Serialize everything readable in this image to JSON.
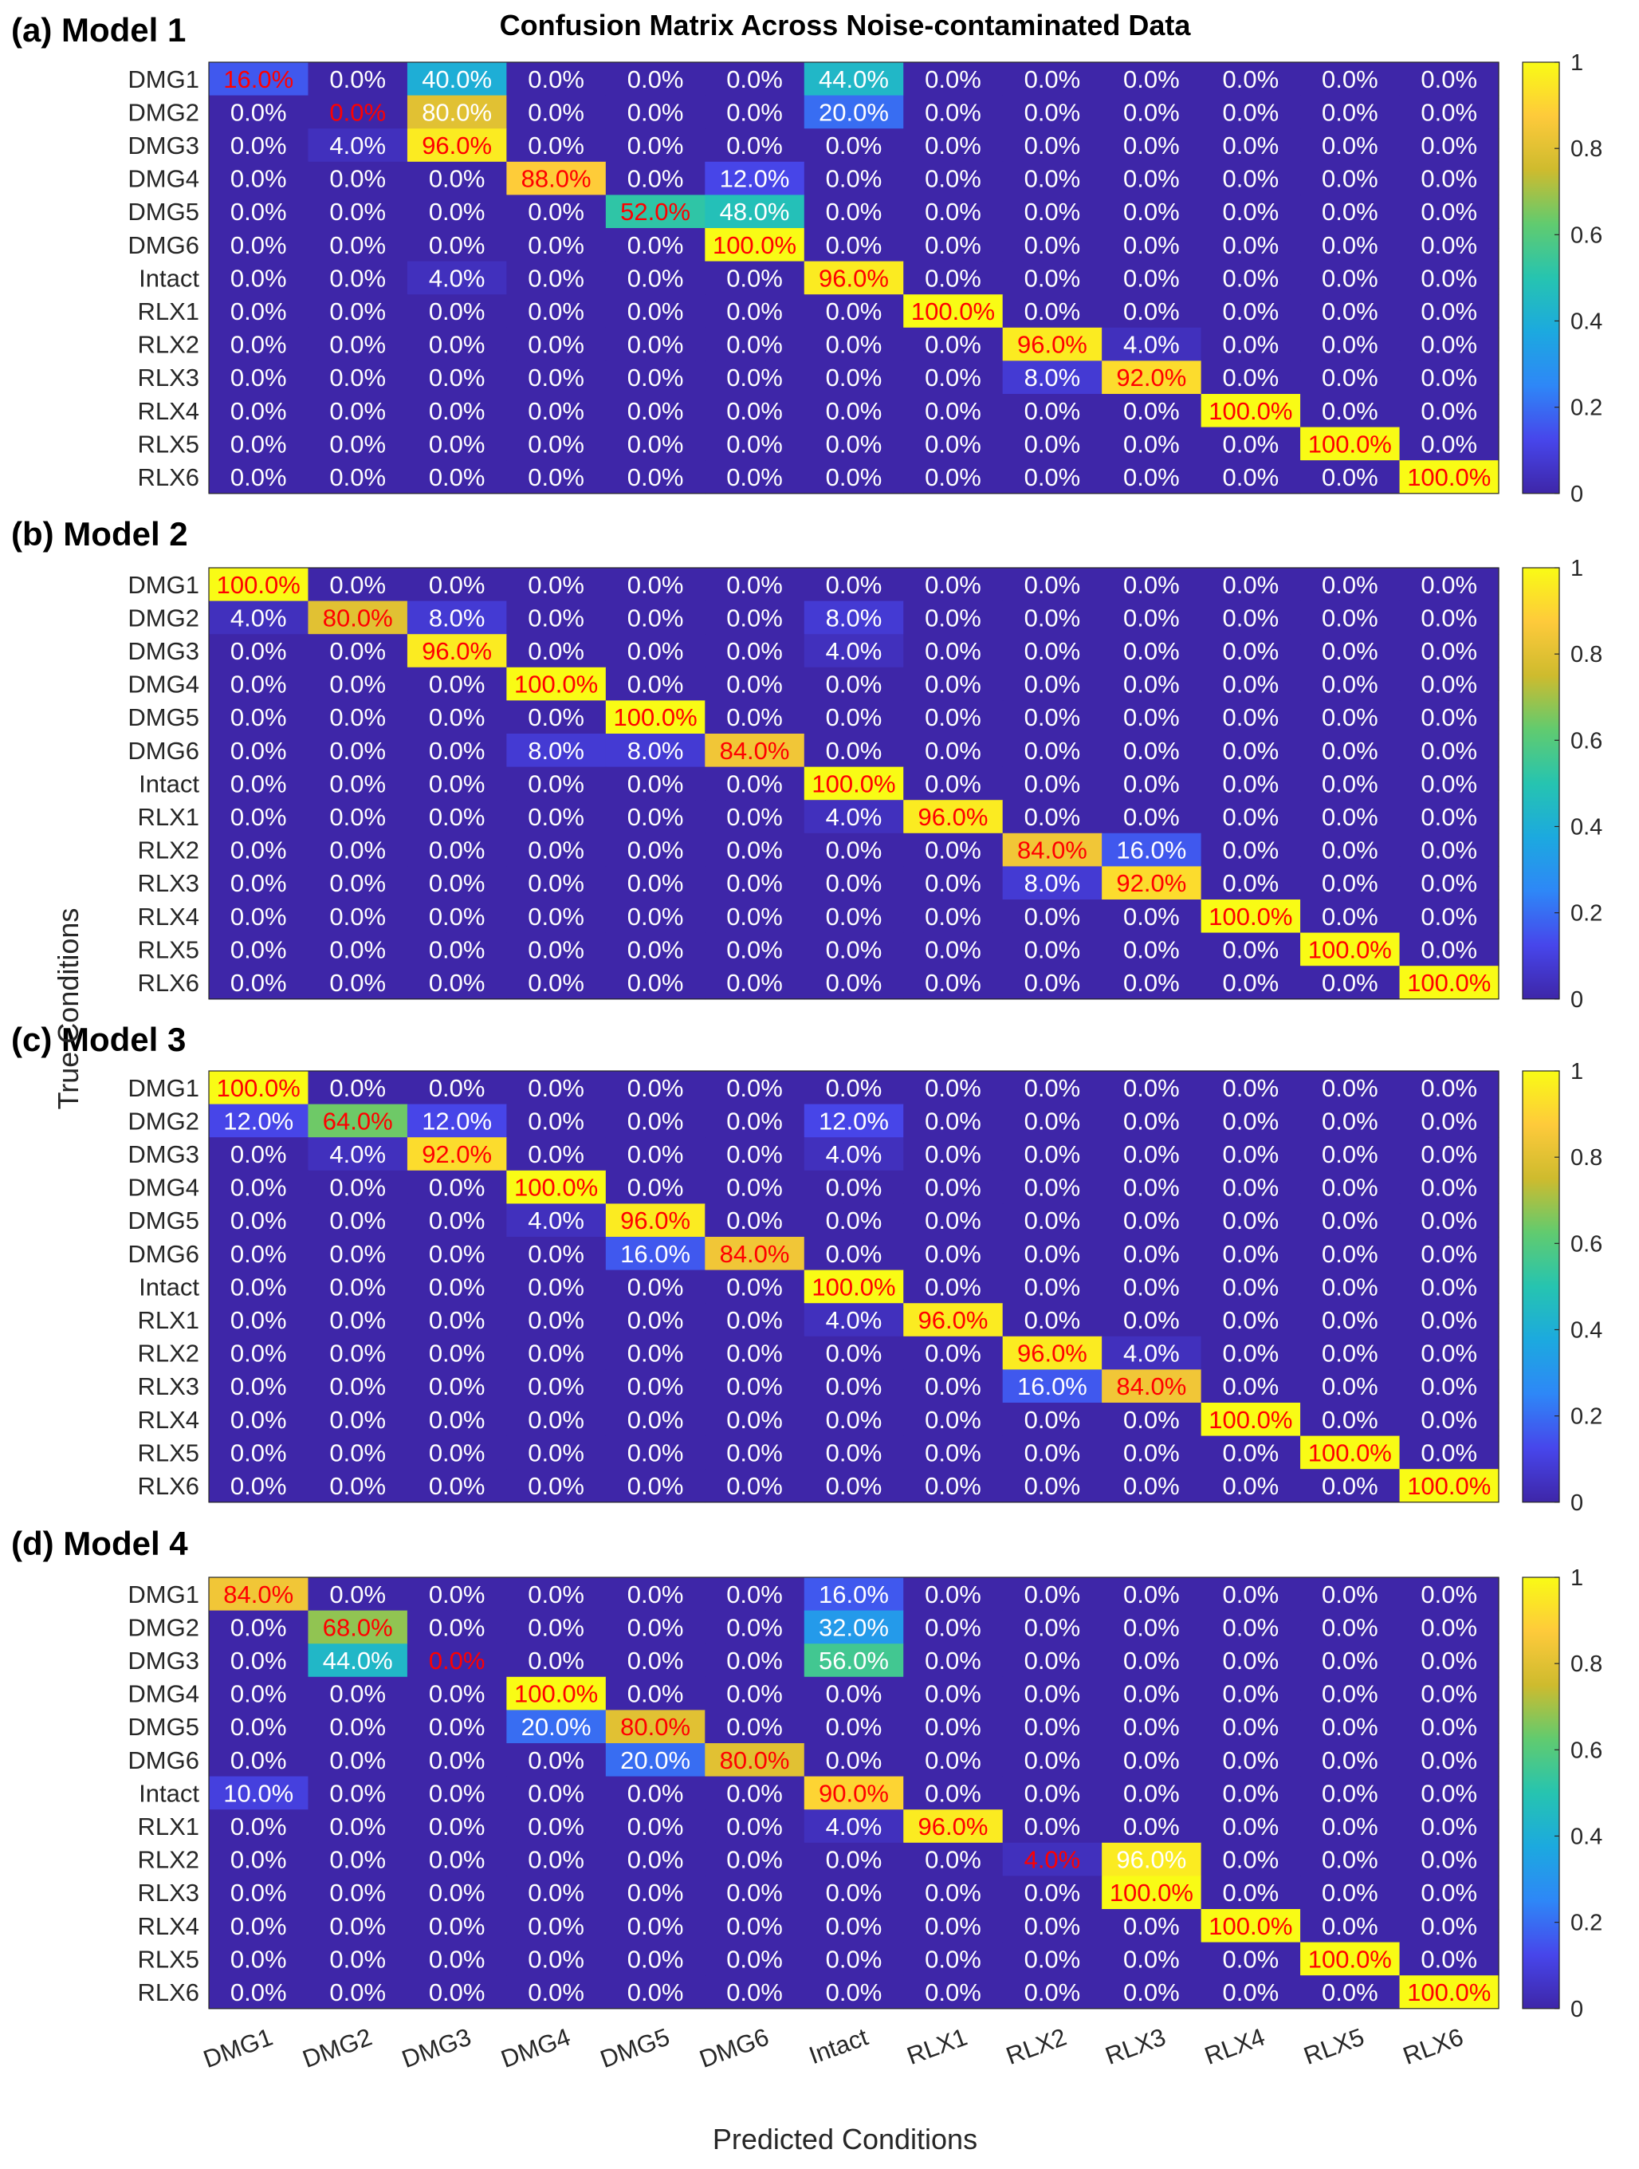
{
  "figure": {
    "title": "Confusion Matrix Across Noise-contaminated Data",
    "ylabel": "True Conditions",
    "xlabel": "Predicted Conditions"
  },
  "chart_data": {
    "type": "heatmap",
    "title": "Confusion Matrix Across Noise-contaminated Data",
    "xlabel": "Predicted Conditions",
    "ylabel": "True Conditions",
    "categories": [
      "DMG1",
      "DMG2",
      "DMG3",
      "DMG4",
      "DMG5",
      "DMG6",
      "Intact",
      "RLX1",
      "RLX2",
      "RLX3",
      "RLX4",
      "RLX5",
      "RLX6"
    ],
    "colorbar": {
      "range": [
        0,
        1
      ],
      "ticks": [
        "0",
        "0.2",
        "0.4",
        "0.6",
        "0.8",
        "1"
      ]
    },
    "colors": {
      "low": "#3e26a8",
      "mid": "#26c4b0",
      "high": "#f9fb15",
      "diag_text": "#ff0000",
      "offdiag_text": "#ffffff"
    },
    "panels": [
      {
        "label": "(a) Model 1",
        "matrix": [
          [
            0.16,
            0,
            0.4,
            0,
            0,
            0,
            0.44,
            0,
            0,
            0,
            0,
            0,
            0
          ],
          [
            0,
            0,
            0.8,
            0,
            0,
            0,
            0.2,
            0,
            0,
            0,
            0,
            0,
            0
          ],
          [
            0,
            0.04,
            0.96,
            0,
            0,
            0,
            0,
            0,
            0,
            0,
            0,
            0,
            0
          ],
          [
            0,
            0,
            0,
            0.88,
            0,
            0.12,
            0,
            0,
            0,
            0,
            0,
            0,
            0
          ],
          [
            0,
            0,
            0,
            0,
            0.52,
            0.48,
            0,
            0,
            0,
            0,
            0,
            0,
            0
          ],
          [
            0,
            0,
            0,
            0,
            0,
            1.0,
            0,
            0,
            0,
            0,
            0,
            0,
            0
          ],
          [
            0,
            0,
            0.04,
            0,
            0,
            0,
            0.96,
            0,
            0,
            0,
            0,
            0,
            0
          ],
          [
            0,
            0,
            0,
            0,
            0,
            0,
            0,
            1.0,
            0,
            0,
            0,
            0,
            0
          ],
          [
            0,
            0,
            0,
            0,
            0,
            0,
            0,
            0,
            0.96,
            0.04,
            0,
            0,
            0
          ],
          [
            0,
            0,
            0,
            0,
            0,
            0,
            0,
            0,
            0.08,
            0.92,
            0,
            0,
            0
          ],
          [
            0,
            0,
            0,
            0,
            0,
            0,
            0,
            0,
            0,
            0,
            1.0,
            0,
            0
          ],
          [
            0,
            0,
            0,
            0,
            0,
            0,
            0,
            0,
            0,
            0,
            0,
            1.0,
            0
          ],
          [
            0,
            0,
            0,
            0,
            0,
            0,
            0,
            0,
            0,
            0,
            0,
            0,
            1.0
          ]
        ]
      },
      {
        "label": "(b) Model 2",
        "matrix": [
          [
            1.0,
            0,
            0,
            0,
            0,
            0,
            0,
            0,
            0,
            0,
            0,
            0,
            0
          ],
          [
            0.04,
            0.8,
            0.08,
            0,
            0,
            0,
            0.08,
            0,
            0,
            0,
            0,
            0,
            0
          ],
          [
            0,
            0,
            0.96,
            0,
            0,
            0,
            0.04,
            0,
            0,
            0,
            0,
            0,
            0
          ],
          [
            0,
            0,
            0,
            1.0,
            0,
            0,
            0,
            0,
            0,
            0,
            0,
            0,
            0
          ],
          [
            0,
            0,
            0,
            0,
            1.0,
            0,
            0,
            0,
            0,
            0,
            0,
            0,
            0
          ],
          [
            0,
            0,
            0,
            0.08,
            0.08,
            0.84,
            0,
            0,
            0,
            0,
            0,
            0,
            0
          ],
          [
            0,
            0,
            0,
            0,
            0,
            0,
            1.0,
            0,
            0,
            0,
            0,
            0,
            0
          ],
          [
            0,
            0,
            0,
            0,
            0,
            0,
            0.04,
            0.96,
            0,
            0,
            0,
            0,
            0
          ],
          [
            0,
            0,
            0,
            0,
            0,
            0,
            0,
            0,
            0.84,
            0.16,
            0,
            0,
            0
          ],
          [
            0,
            0,
            0,
            0,
            0,
            0,
            0,
            0,
            0.08,
            0.92,
            0,
            0,
            0
          ],
          [
            0,
            0,
            0,
            0,
            0,
            0,
            0,
            0,
            0,
            0,
            1.0,
            0,
            0
          ],
          [
            0,
            0,
            0,
            0,
            0,
            0,
            0,
            0,
            0,
            0,
            0,
            1.0,
            0
          ],
          [
            0,
            0,
            0,
            0,
            0,
            0,
            0,
            0,
            0,
            0,
            0,
            0,
            1.0
          ]
        ]
      },
      {
        "label": "(c) Model 3",
        "matrix": [
          [
            1.0,
            0,
            0,
            0,
            0,
            0,
            0,
            0,
            0,
            0,
            0,
            0,
            0
          ],
          [
            0.12,
            0.64,
            0.12,
            0,
            0,
            0,
            0.12,
            0,
            0,
            0,
            0,
            0,
            0
          ],
          [
            0,
            0.04,
            0.92,
            0,
            0,
            0,
            0.04,
            0,
            0,
            0,
            0,
            0,
            0
          ],
          [
            0,
            0,
            0,
            1.0,
            0,
            0,
            0,
            0,
            0,
            0,
            0,
            0,
            0
          ],
          [
            0,
            0,
            0,
            0.04,
            0.96,
            0,
            0,
            0,
            0,
            0,
            0,
            0,
            0
          ],
          [
            0,
            0,
            0,
            0,
            0.16,
            0.84,
            0,
            0,
            0,
            0,
            0,
            0,
            0
          ],
          [
            0,
            0,
            0,
            0,
            0,
            0,
            1.0,
            0,
            0,
            0,
            0,
            0,
            0
          ],
          [
            0,
            0,
            0,
            0,
            0,
            0,
            0.04,
            0.96,
            0,
            0,
            0,
            0,
            0
          ],
          [
            0,
            0,
            0,
            0,
            0,
            0,
            0,
            0,
            0.96,
            0.04,
            0,
            0,
            0
          ],
          [
            0,
            0,
            0,
            0,
            0,
            0,
            0,
            0,
            0.16,
            0.84,
            0,
            0,
            0
          ],
          [
            0,
            0,
            0,
            0,
            0,
            0,
            0,
            0,
            0,
            0,
            1.0,
            0,
            0
          ],
          [
            0,
            0,
            0,
            0,
            0,
            0,
            0,
            0,
            0,
            0,
            0,
            1.0,
            0
          ],
          [
            0,
            0,
            0,
            0,
            0,
            0,
            0,
            0,
            0,
            0,
            0,
            0,
            1.0
          ]
        ]
      },
      {
        "label": "(d) Model 4",
        "matrix": [
          [
            0.84,
            0,
            0,
            0,
            0,
            0,
            0.16,
            0,
            0,
            0,
            0,
            0,
            0
          ],
          [
            0,
            0.68,
            0,
            0,
            0,
            0,
            0.32,
            0,
            0,
            0,
            0,
            0,
            0
          ],
          [
            0,
            0.44,
            0,
            0,
            0,
            0,
            0.56,
            0,
            0,
            0,
            0,
            0,
            0
          ],
          [
            0,
            0,
            0,
            1.0,
            0,
            0,
            0,
            0,
            0,
            0,
            0,
            0,
            0
          ],
          [
            0,
            0,
            0,
            0.2,
            0.8,
            0,
            0,
            0,
            0,
            0,
            0,
            0,
            0
          ],
          [
            0,
            0,
            0,
            0,
            0.2,
            0.8,
            0,
            0,
            0,
            0,
            0,
            0,
            0
          ],
          [
            0.1,
            0,
            0,
            0,
            0,
            0,
            0.9,
            0,
            0,
            0,
            0,
            0,
            0
          ],
          [
            0,
            0,
            0,
            0,
            0,
            0,
            0.04,
            0.96,
            0,
            0,
            0,
            0,
            0
          ],
          [
            0,
            0,
            0,
            0,
            0,
            0,
            0,
            0,
            0.04,
            0.96,
            0,
            0,
            0
          ],
          [
            0,
            0,
            0,
            0,
            0,
            0,
            0,
            0,
            0,
            1.0,
            0,
            0,
            0
          ],
          [
            0,
            0,
            0,
            0,
            0,
            0,
            0,
            0,
            0,
            0,
            1.0,
            0,
            0
          ],
          [
            0,
            0,
            0,
            0,
            0,
            0,
            0,
            0,
            0,
            0,
            0,
            1.0,
            0
          ],
          [
            0,
            0,
            0,
            0,
            0,
            0,
            0,
            0,
            0,
            0,
            0,
            0,
            1.0
          ]
        ]
      }
    ]
  }
}
